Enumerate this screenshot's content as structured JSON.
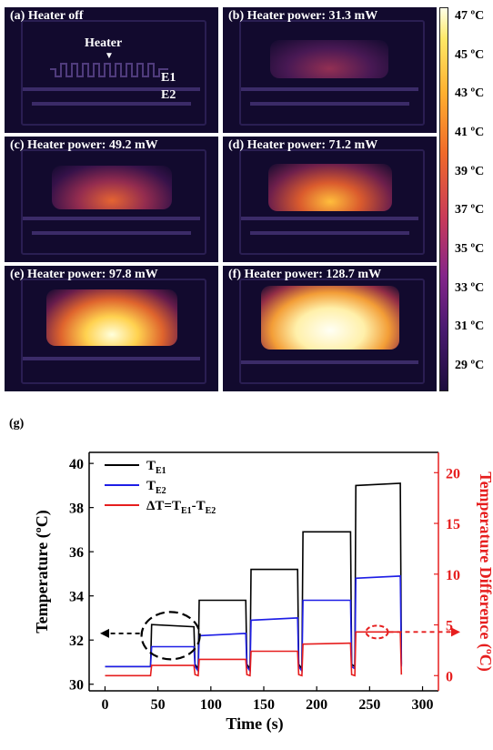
{
  "panels": [
    {
      "label": "(a)  Heater off",
      "intensity": 0
    },
    {
      "label": "(b)  Heater power: 31.3 mW",
      "intensity": 0.25
    },
    {
      "label": "(c)  Heater power: 49.2 mW",
      "intensity": 0.4
    },
    {
      "label": "(d)  Heater power: 71.2 mW",
      "intensity": 0.55
    },
    {
      "label": "(e)  Heater power: 97.8 mW",
      "intensity": 0.8
    },
    {
      "label": "(f)  Heater power: 128.7 mW",
      "intensity": 1.0
    }
  ],
  "annotations": {
    "heater": "Heater",
    "e1": "E1",
    "e2": "E2"
  },
  "colorbar": {
    "ticks": [
      "47 ºC",
      "45 ºC",
      "43 ºC",
      "41 ºC",
      "39 ºC",
      "37 ºC",
      "35 ºC",
      "33 ºC",
      "31 ºC",
      "29 ºC"
    ]
  },
  "panel_g_label": "(g)",
  "chart_data": {
    "type": "line",
    "xlabel": "Time (s)",
    "ylabel": "Temperature (ºC)",
    "y2label": "Temperature Difference (ºC)",
    "xlim": [
      -15,
      315
    ],
    "ylim": [
      29.7,
      40.5
    ],
    "y2lim": [
      -1.5,
      22
    ],
    "xticks": [
      0,
      50,
      100,
      150,
      200,
      250,
      300
    ],
    "yticks": [
      30,
      32,
      34,
      36,
      38,
      40
    ],
    "y2ticks": [
      0,
      5,
      10,
      15,
      20
    ],
    "legend_position": "top-left",
    "series": [
      {
        "name": "T",
        "sub": "E1",
        "axis": "left",
        "color": "#000000",
        "x": [
          0,
          43,
          44,
          84,
          85,
          88,
          89,
          133,
          134,
          137,
          138,
          182,
          183,
          186,
          187,
          232,
          233,
          236,
          237,
          279,
          280
        ],
        "y": [
          30.8,
          30.8,
          32.7,
          32.6,
          30.9,
          30.7,
          33.8,
          33.8,
          30.9,
          30.7,
          35.2,
          35.2,
          30.9,
          30.7,
          36.9,
          36.9,
          30.9,
          30.8,
          39.0,
          39.1,
          30.9
        ]
      },
      {
        "name": "T",
        "sub": "E2",
        "axis": "left",
        "color": "#1e1ee6",
        "x": [
          0,
          43,
          44,
          84,
          85,
          88,
          89,
          133,
          134,
          137,
          138,
          182,
          183,
          186,
          187,
          232,
          233,
          236,
          237,
          279,
          280
        ],
        "y": [
          30.8,
          30.8,
          31.7,
          31.7,
          30.8,
          30.6,
          32.2,
          32.3,
          30.8,
          30.6,
          32.9,
          33.0,
          30.8,
          30.6,
          33.8,
          33.8,
          30.8,
          30.7,
          34.8,
          34.9,
          30.8
        ]
      },
      {
        "name": "ΔT=T",
        "sub": "E1",
        "name2": "-T",
        "sub2": "E2",
        "axis": "right",
        "color": "#e61e1e",
        "x": [
          0,
          43,
          44,
          84,
          85,
          88,
          89,
          133,
          134,
          137,
          138,
          182,
          183,
          186,
          187,
          232,
          233,
          236,
          237,
          279,
          280
        ],
        "y": [
          0,
          0,
          1.0,
          1.0,
          0.1,
          0,
          1.6,
          1.6,
          0.1,
          0,
          2.4,
          2.4,
          0.1,
          0,
          3.1,
          3.2,
          0.1,
          0,
          4.3,
          4.3,
          0.1
        ]
      }
    ]
  }
}
